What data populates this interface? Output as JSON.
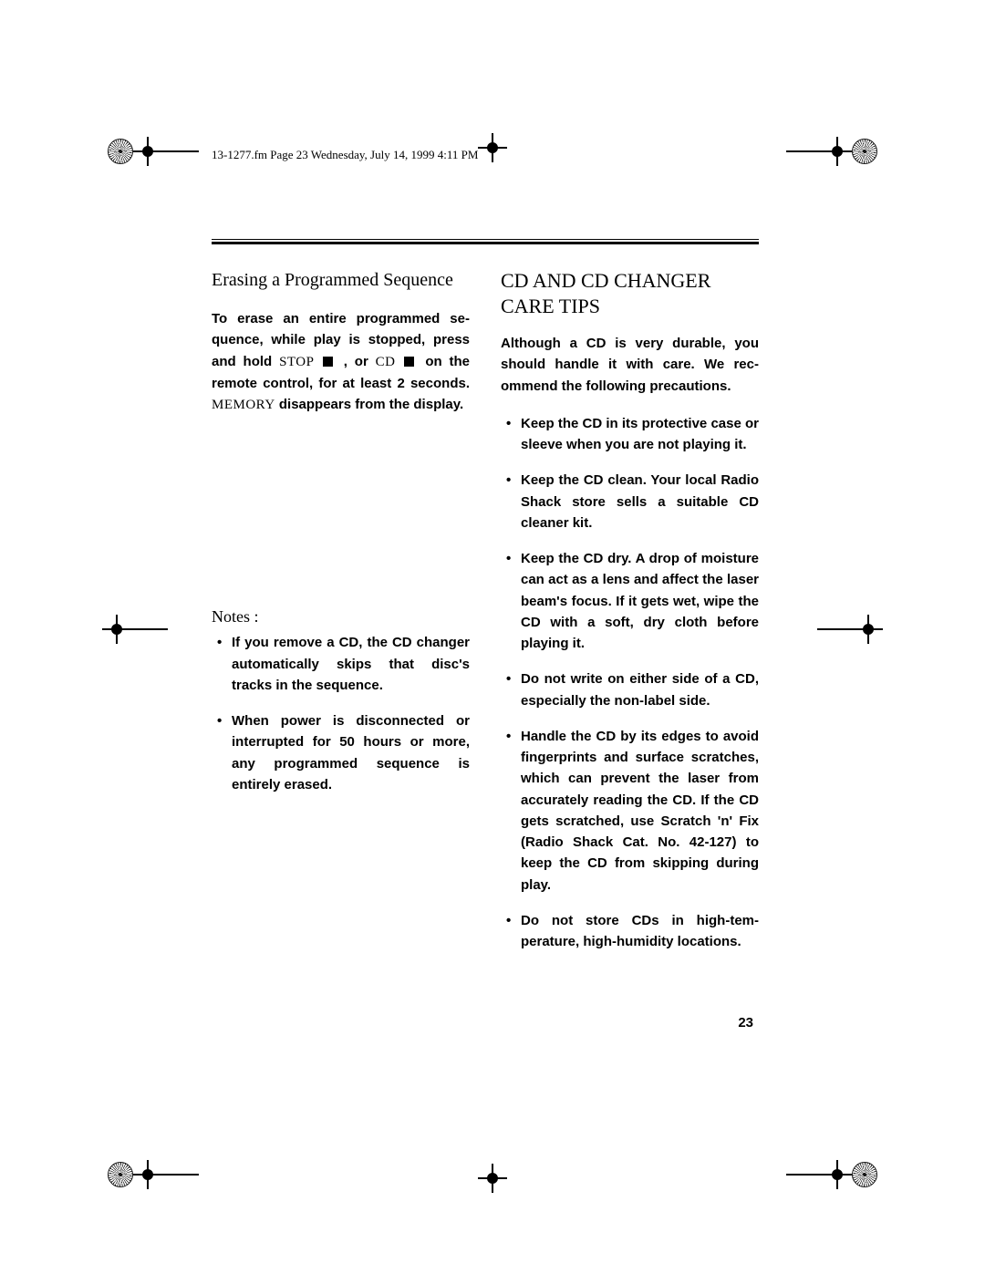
{
  "header": {
    "runningHead": "13-1277.fm  Page 23  Wednesday, July 14, 1999  4:11 PM"
  },
  "page": {
    "number": "23"
  },
  "left": {
    "subheading": "Erasing a Programmed Sequence",
    "erase": {
      "p1": "To erase an entire programmed se­quence, while play is stopped, press and hold",
      "w_stop": " STOP ",
      "mid": " , or ",
      "w_cd": "CD ",
      "p2": " on the remote control, for at least 2 sec­onds. ",
      "w_memory": "MEMORY",
      "p3": " disappears from the display."
    },
    "notesLabel": "Notes",
    "notesColon": " :",
    "notes": [
      "If you remove a CD, the CD changer automatically skips that disc's tracks in the sequence.",
      "When power is disconnected or interrupted for 50 hours or more, any programmed sequence is entirely erased."
    ]
  },
  "right": {
    "heading": "CD AND CD CHANGER CARE TIPS",
    "intro": "Although a CD is very durable, you should handle it with care. We rec­ommend the following precautions.",
    "tips": [
      "Keep the CD in its protective case or sleeve when you are not playing it.",
      "Keep the CD clean. Your local Radio Shack store sells a suit­able CD cleaner kit.",
      "Keep the CD dry. A drop of moisture can act as a lens and affect the laser beam's focus. If it gets wet, wipe the CD with a soft, dry cloth before playing it.",
      "Do not write on either side of a CD, especially the non-label side.",
      "Handle the CD by its edges to avoid fingerprints and surface scratches, which can prevent the laser from accurately read­ing the CD. If the CD gets scratched, use Scratch 'n' Fix (Radio Shack Cat. No. 42-127) to keep the CD from skipping during play.",
      "Do not store CDs in high-tem­perature, high-humidity loca­tions."
    ]
  },
  "style": {
    "bodyFontSizePt": 11,
    "headingFontSizePt": 16,
    "subheadingFontSizePt": 15,
    "textColor": "#000000",
    "background": "#ffffff"
  }
}
